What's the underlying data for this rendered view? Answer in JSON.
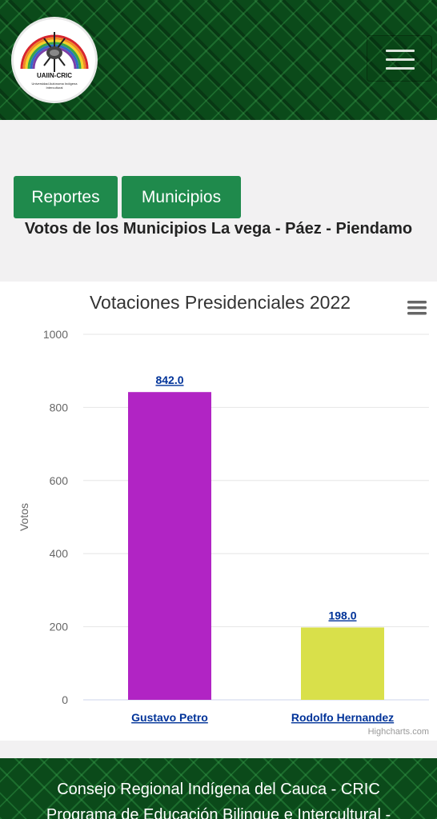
{
  "header": {
    "logo_text": "UAIIN-CRIC",
    "logo_subtext": "Universidad Autónoma Indígena Intercultural",
    "menu_icon": "hamburger-icon"
  },
  "nav": {
    "reportes_label": "Reportes",
    "municipios_label": "Municipios"
  },
  "page_title": "Votos de los Municipios La vega - Páez - Piendamo",
  "chart": {
    "menu_icon": "chart-menu-icon",
    "credits": "Highcharts.com"
  },
  "chart_data": {
    "type": "bar",
    "title": "Votaciones Presidenciales 2022",
    "ylabel": "Votos",
    "xlabel": "",
    "ylim": [
      0,
      1000
    ],
    "yticks": [
      0,
      200,
      400,
      600,
      800,
      1000
    ],
    "categories": [
      "Gustavo Petro",
      "Rodolfo Hernandez"
    ],
    "values": [
      842,
      198
    ],
    "data_labels": [
      "842.0",
      "198.0"
    ],
    "colors": [
      "#b124c4",
      "#d9e04a"
    ],
    "grid": true,
    "legend": "none"
  },
  "footer": {
    "line1": "Consejo Regional Indígena del Cauca - CRIC",
    "line2": "Programa de Educación Bilingue e Intercultural -"
  },
  "colors": {
    "header_green": "#0b4a1a",
    "button_green": "#1f8a4c",
    "link_blue": "#003399"
  }
}
